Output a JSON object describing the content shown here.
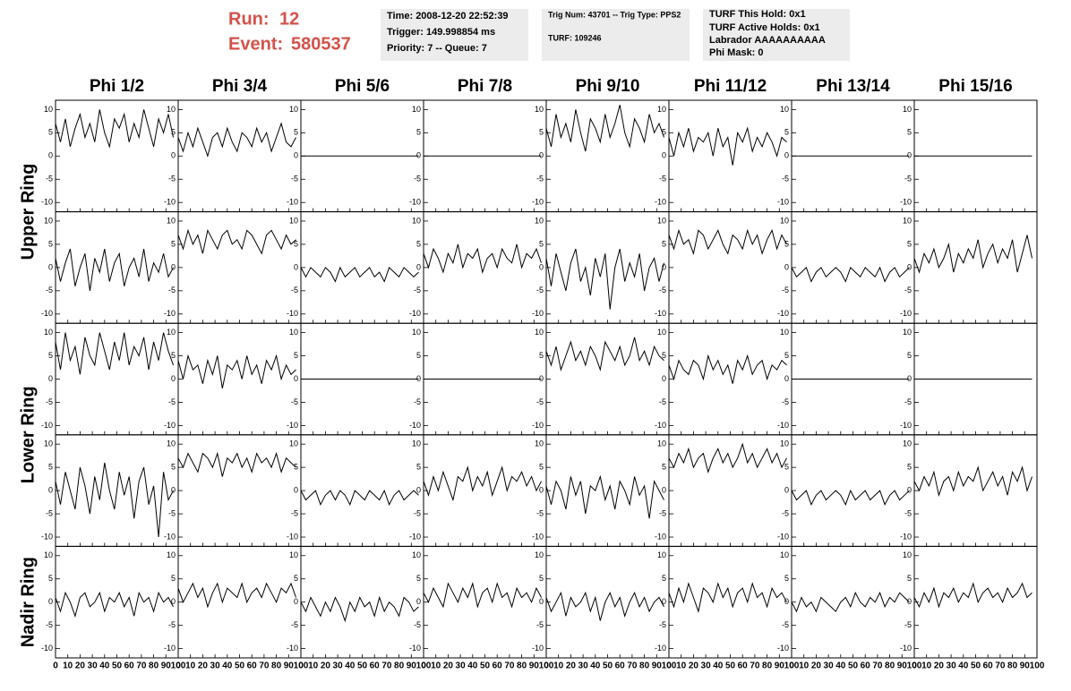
{
  "header": {
    "run_label": "Run:",
    "run": "12",
    "event_label": "Event:",
    "event": "580537",
    "boxes": [
      [
        "Time: 2008-12-20 22:52:39",
        "Trigger: 149.998854 ms",
        "Priority: 7 -- Queue: 7"
      ],
      [
        "Trig Num: 43701 -- Trig Type: PPS2",
        "TURF: 109246"
      ],
      [
        "TURF This Hold: 0x1",
        "TURF Active Holds: 0x1",
        "Labrador AAAAAAAAAA",
        "Phi Mask: 0"
      ]
    ]
  },
  "chart_data": {
    "type": "line",
    "columns": [
      "Phi 1/2",
      "Phi 3/4",
      "Phi 5/6",
      "Phi 7/8",
      "Phi 9/10",
      "Phi 11/12",
      "Phi 13/14",
      "Phi 15/16"
    ],
    "rows": [
      "Upper Ring",
      "Lower Ring",
      "Nadir Ring"
    ],
    "xlim": [
      0,
      100
    ],
    "xticks": [
      0,
      10,
      20,
      30,
      40,
      50,
      60,
      70,
      80,
      90,
      100
    ],
    "ylim": [
      -12,
      12
    ],
    "yticks": [
      -10,
      -5,
      0,
      5,
      10
    ],
    "color": "#000000",
    "x": [
      0,
      4,
      8,
      12,
      16,
      20,
      24,
      28,
      32,
      36,
      40,
      44,
      48,
      52,
      56,
      60,
      64,
      68,
      72,
      76,
      80,
      84,
      88,
      92,
      96
    ],
    "series": [
      {
        "values": [
          7,
          3,
          8,
          2,
          6,
          9,
          4,
          7,
          3,
          10,
          5,
          2,
          8,
          6,
          9,
          3,
          7,
          4,
          10,
          6,
          2,
          8,
          5,
          9,
          4
        ]
      },
      {
        "values": [
          4,
          1,
          5,
          2,
          6,
          3,
          0,
          4,
          5,
          2,
          6,
          3,
          1,
          5,
          4,
          2,
          6,
          3,
          5,
          1,
          4,
          7,
          3,
          2,
          4
        ]
      },
      {
        "values": [
          0,
          0,
          0,
          0,
          0,
          0,
          0,
          0,
          0,
          0,
          0,
          0,
          0,
          0,
          0,
          0,
          0,
          0,
          0,
          0,
          0,
          0,
          0,
          0,
          0
        ]
      },
      {
        "values": [
          0,
          0,
          0,
          0,
          0,
          0,
          0,
          0,
          0,
          0,
          0,
          0,
          0,
          0,
          0,
          0,
          0,
          0,
          0,
          0,
          0,
          0,
          0,
          0,
          0
        ]
      },
      {
        "values": [
          6,
          2,
          9,
          4,
          7,
          3,
          10,
          5,
          1,
          8,
          6,
          3,
          9,
          4,
          7,
          11,
          5,
          2,
          8,
          6,
          3,
          9,
          5,
          7,
          4
        ]
      },
      {
        "values": [
          4,
          0,
          5,
          2,
          6,
          1,
          4,
          3,
          5,
          0,
          6,
          2,
          4,
          -2,
          5,
          3,
          6,
          1,
          4,
          2,
          5,
          3,
          0,
          4,
          3
        ]
      },
      {
        "values": [
          0,
          0,
          0,
          0,
          0,
          0,
          0,
          0,
          0,
          0,
          0,
          0,
          0,
          0,
          0,
          0,
          0,
          0,
          0,
          0,
          0,
          0,
          0,
          0,
          0
        ]
      },
      {
        "values": [
          0,
          0,
          0,
          0,
          0,
          0,
          0,
          0,
          0,
          0,
          0,
          0,
          0,
          0,
          0,
          0,
          0,
          0,
          0,
          0,
          0,
          0,
          0,
          0,
          0
        ]
      },
      {
        "values": [
          2,
          -3,
          1,
          4,
          -4,
          0,
          3,
          -5,
          2,
          -1,
          4,
          -3,
          1,
          3,
          -4,
          0,
          2,
          -2,
          4,
          -3,
          1,
          -1,
          3,
          -2,
          0
        ]
      },
      {
        "values": [
          7,
          4,
          8,
          5,
          7,
          3,
          8,
          6,
          4,
          7,
          8,
          5,
          6,
          4,
          8,
          7,
          5,
          3,
          7,
          8,
          6,
          4,
          7,
          5,
          6
        ]
      },
      {
        "values": [
          0,
          -2,
          0,
          -1,
          -2,
          0,
          -1,
          -3,
          0,
          -2,
          -1,
          0,
          -2,
          -1,
          0,
          -2,
          -1,
          -3,
          0,
          -1,
          -2,
          0,
          -1,
          -2,
          -1
        ]
      },
      {
        "values": [
          3,
          0,
          4,
          2,
          -1,
          3,
          1,
          5,
          0,
          3,
          2,
          4,
          -1,
          2,
          3,
          0,
          4,
          2,
          1,
          5,
          0,
          3,
          2,
          4,
          1
        ]
      },
      {
        "values": [
          2,
          -4,
          3,
          -1,
          -5,
          1,
          4,
          -3,
          0,
          -6,
          2,
          -2,
          3,
          -9,
          0,
          4,
          -3,
          1,
          -2,
          3,
          -5,
          0,
          2,
          -3,
          1
        ]
      },
      {
        "values": [
          7,
          4,
          8,
          5,
          6,
          3,
          8,
          7,
          4,
          6,
          8,
          5,
          3,
          7,
          6,
          4,
          8,
          5,
          7,
          3,
          6,
          8,
          4,
          7,
          5
        ]
      },
      {
        "values": [
          0,
          -2,
          -1,
          0,
          -3,
          -1,
          0,
          -2,
          -1,
          0,
          -1,
          -3,
          0,
          -1,
          -2,
          0,
          -1,
          -2,
          0,
          -3,
          -1,
          0,
          -2,
          -1,
          0
        ]
      },
      {
        "values": [
          2,
          -1,
          3,
          1,
          4,
          0,
          2,
          5,
          -1,
          3,
          1,
          4,
          2,
          6,
          0,
          3,
          5,
          1,
          4,
          2,
          6,
          -1,
          3,
          7,
          2
        ]
      },
      {
        "values": [
          8,
          2,
          10,
          4,
          7,
          1,
          9,
          5,
          3,
          10,
          6,
          2,
          8,
          4,
          10,
          3,
          7,
          5,
          9,
          2,
          8,
          4,
          10,
          6,
          3
        ]
      },
      {
        "values": [
          4,
          0,
          5,
          2,
          3,
          -1,
          4,
          1,
          5,
          -2,
          3,
          2,
          4,
          0,
          5,
          1,
          3,
          -1,
          4,
          2,
          5,
          0,
          3,
          1,
          2
        ]
      },
      {
        "values": [
          0,
          0,
          0,
          0,
          0,
          0,
          0,
          0,
          0,
          0,
          0,
          0,
          0,
          0,
          0,
          0,
          0,
          0,
          0,
          0,
          0,
          0,
          0,
          0,
          0
        ]
      },
      {
        "values": [
          0,
          0,
          0,
          0,
          0,
          0,
          0,
          0,
          0,
          0,
          0,
          0,
          0,
          0,
          0,
          0,
          0,
          0,
          0,
          0,
          0,
          0,
          0,
          0,
          0
        ]
      },
      {
        "values": [
          6,
          3,
          7,
          2,
          5,
          8,
          4,
          6,
          3,
          7,
          5,
          2,
          8,
          6,
          4,
          7,
          3,
          5,
          9,
          4,
          6,
          3,
          7,
          5,
          4
        ]
      },
      {
        "values": [
          3,
          0,
          4,
          2,
          1,
          4,
          3,
          0,
          5,
          2,
          4,
          1,
          3,
          -1,
          4,
          2,
          5,
          1,
          3,
          4,
          0,
          3,
          2,
          4,
          3
        ]
      },
      {
        "values": [
          0,
          0,
          0,
          0,
          0,
          0,
          0,
          0,
          0,
          0,
          0,
          0,
          0,
          0,
          0,
          0,
          0,
          0,
          0,
          0,
          0,
          0,
          0,
          0,
          0
        ]
      },
      {
        "values": [
          0,
          0,
          0,
          0,
          0,
          0,
          0,
          0,
          0,
          0,
          0,
          0,
          0,
          0,
          0,
          0,
          0,
          0,
          0,
          0,
          0,
          0,
          0,
          0,
          0
        ]
      },
      {
        "values": [
          2,
          -3,
          4,
          0,
          -4,
          5,
          1,
          -5,
          3,
          -2,
          6,
          0,
          -4,
          4,
          -1,
          3,
          -6,
          2,
          5,
          -3,
          1,
          -10,
          4,
          -2,
          0
        ]
      },
      {
        "values": [
          7,
          5,
          8,
          6,
          4,
          8,
          7,
          5,
          8,
          3,
          7,
          6,
          8,
          5,
          7,
          4,
          8,
          6,
          7,
          5,
          8,
          4,
          7,
          6,
          5
        ]
      },
      {
        "values": [
          0,
          -2,
          -1,
          0,
          -3,
          -1,
          0,
          -2,
          0,
          -1,
          -3,
          0,
          -1,
          -2,
          0,
          -1,
          -2,
          0,
          -3,
          -1,
          0,
          -2,
          -1,
          0,
          -1
        ]
      },
      {
        "values": [
          2,
          -1,
          3,
          0,
          4,
          1,
          -2,
          3,
          2,
          5,
          0,
          3,
          1,
          4,
          -1,
          2,
          5,
          0,
          3,
          2,
          4,
          1,
          3,
          0,
          2
        ]
      },
      {
        "values": [
          1,
          -3,
          2,
          0,
          -4,
          3,
          -1,
          2,
          -5,
          1,
          0,
          3,
          -2,
          1,
          -4,
          2,
          0,
          -3,
          3,
          -1,
          1,
          -6,
          2,
          0,
          -2
        ]
      },
      {
        "values": [
          7,
          5,
          8,
          6,
          9,
          5,
          7,
          8,
          4,
          7,
          9,
          6,
          8,
          5,
          7,
          10,
          6,
          8,
          5,
          7,
          9,
          6,
          8,
          5,
          7
        ]
      },
      {
        "values": [
          0,
          -2,
          -1,
          0,
          -3,
          -1,
          0,
          -2,
          -1,
          0,
          -1,
          -3,
          0,
          -2,
          -1,
          0,
          -2,
          -1,
          0,
          -3,
          -1,
          0,
          -2,
          -1,
          0
        ]
      },
      {
        "values": [
          2,
          0,
          3,
          1,
          4,
          -1,
          2,
          3,
          0,
          4,
          1,
          3,
          2,
          5,
          0,
          2,
          4,
          1,
          3,
          -1,
          4,
          2,
          5,
          0,
          3
        ]
      },
      {
        "values": [
          1,
          -2,
          2,
          0,
          -3,
          1,
          2,
          -1,
          0,
          2,
          -2,
          1,
          0,
          2,
          -1,
          1,
          -3,
          2,
          0,
          1,
          -2,
          2,
          0,
          1,
          -1
        ]
      },
      {
        "values": [
          3,
          0,
          2,
          4,
          1,
          3,
          -1,
          2,
          4,
          0,
          3,
          2,
          1,
          4,
          0,
          2,
          3,
          1,
          4,
          2,
          0,
          3,
          2,
          4,
          1
        ]
      },
      {
        "values": [
          0,
          -2,
          1,
          -1,
          -3,
          0,
          -2,
          1,
          -1,
          -4,
          0,
          -2,
          1,
          -1,
          0,
          -3,
          1,
          -2,
          0,
          -1,
          -3,
          1,
          0,
          -2,
          -1
        ]
      },
      {
        "values": [
          2,
          0,
          3,
          1,
          -1,
          4,
          2,
          0,
          3,
          1,
          4,
          -1,
          2,
          3,
          0,
          4,
          1,
          2,
          -1,
          3,
          1,
          2,
          0,
          3,
          1
        ]
      },
      {
        "values": [
          1,
          -2,
          0,
          2,
          -3,
          1,
          -1,
          0,
          2,
          -2,
          1,
          -4,
          0,
          2,
          -1,
          1,
          -3,
          0,
          2,
          -1,
          1,
          -2,
          0,
          1,
          -1
        ]
      },
      {
        "values": [
          2,
          -1,
          3,
          0,
          4,
          1,
          -2,
          3,
          2,
          0,
          4,
          1,
          3,
          -1,
          2,
          3,
          0,
          4,
          1,
          2,
          -1,
          3,
          1,
          2,
          0
        ]
      },
      {
        "values": [
          0,
          -2,
          1,
          -1,
          0,
          -2,
          1,
          0,
          -1,
          -2,
          0,
          1,
          -1,
          2,
          0,
          -1,
          1,
          0,
          2,
          -1,
          1,
          0,
          2,
          1,
          0
        ]
      },
      {
        "values": [
          1,
          -1,
          2,
          0,
          3,
          -1,
          2,
          1,
          3,
          0,
          2,
          1,
          4,
          0,
          2,
          3,
          1,
          2,
          0,
          3,
          1,
          2,
          4,
          1,
          2
        ]
      }
    ]
  }
}
